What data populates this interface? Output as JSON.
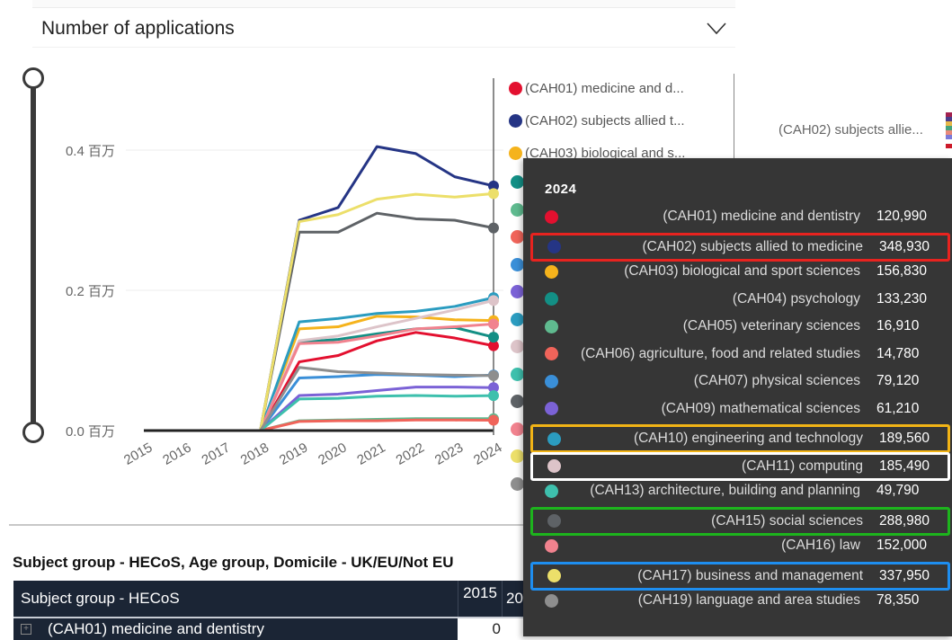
{
  "header": {
    "measure_selector": "Number of applications"
  },
  "side_panel": {
    "truncated_label": "(CAH02) subjects allie..."
  },
  "legend": {
    "items": [
      {
        "label": "(CAH01) medicine and d...",
        "color": "#e3102f"
      },
      {
        "label": "(CAH02) subjects allied t...",
        "color": "#253585"
      },
      {
        "label": "(CAH03) biological and s...",
        "color": "#f5b31c"
      }
    ]
  },
  "chart_data": {
    "type": "line",
    "title": "Number of applications",
    "x": [
      "2015",
      "2016",
      "2017",
      "2018",
      "2019",
      "2020",
      "2021",
      "2022",
      "2023",
      "2024"
    ],
    "yticks": [
      "0.0 百万",
      "0.2 百万",
      "0.4 百万"
    ],
    "ylim": [
      0,
      0.5
    ],
    "yunit": "百万 (millions)",
    "grid": true,
    "legend_position": "right",
    "series": [
      {
        "name": "(CAH01) medicine and dentistry",
        "color": "#e3102f",
        "values": [
          0,
          0,
          0,
          0,
          0.098,
          0.107,
          0.128,
          0.14,
          0.132,
          0.12099
        ]
      },
      {
        "name": "(CAH02) subjects allied to medicine",
        "color": "#253585",
        "values": [
          0,
          0,
          0,
          0,
          0.3,
          0.318,
          0.405,
          0.395,
          0.362,
          0.34893
        ]
      },
      {
        "name": "(CAH03) biological and sport sciences",
        "color": "#f5b31c",
        "values": [
          0,
          0,
          0,
          0,
          0.145,
          0.148,
          0.163,
          0.162,
          0.158,
          0.15683
        ]
      },
      {
        "name": "(CAH04) psychology",
        "color": "#138f85",
        "values": [
          0,
          0,
          0,
          0,
          0.126,
          0.13,
          0.138,
          0.145,
          0.147,
          0.13323
        ]
      },
      {
        "name": "(CAH05) veterinary sciences",
        "color": "#5fba8f",
        "values": [
          0,
          0,
          0,
          0,
          0.014,
          0.015,
          0.016,
          0.017,
          0.017,
          0.01691
        ]
      },
      {
        "name": "(CAH06) agriculture, food and related studies",
        "color": "#f0645a",
        "values": [
          0,
          0,
          0,
          0,
          0.013,
          0.014,
          0.014,
          0.015,
          0.015,
          0.01478
        ]
      },
      {
        "name": "(CAH07) physical sciences",
        "color": "#3a8fd8",
        "values": [
          0,
          0,
          0,
          0,
          0.075,
          0.077,
          0.08,
          0.079,
          0.077,
          0.07912
        ]
      },
      {
        "name": "(CAH09) mathematical sciences",
        "color": "#7b62d6",
        "values": [
          0,
          0,
          0,
          0,
          0.05,
          0.052,
          0.057,
          0.062,
          0.062,
          0.06121
        ]
      },
      {
        "name": "(CAH10) engineering and technology",
        "color": "#2b9cc0",
        "values": [
          0,
          0,
          0,
          0,
          0.155,
          0.16,
          0.167,
          0.17,
          0.177,
          0.18956
        ]
      },
      {
        "name": "(CAH11) computing",
        "color": "#ddc4c9",
        "values": [
          0,
          0,
          0,
          0,
          0.128,
          0.135,
          0.148,
          0.16,
          0.172,
          0.18549
        ]
      },
      {
        "name": "(CAH13) architecture, building and planning",
        "color": "#3ec0ad",
        "values": [
          0,
          0,
          0,
          0,
          0.045,
          0.046,
          0.049,
          0.05,
          0.049,
          0.04979
        ]
      },
      {
        "name": "(CAH15) social sciences",
        "color": "#5e6266",
        "values": [
          0,
          0,
          0,
          0,
          0.283,
          0.283,
          0.31,
          0.302,
          0.3,
          0.28898
        ]
      },
      {
        "name": "(CAH16) law",
        "color": "#f1828e",
        "values": [
          0,
          0,
          0,
          0,
          0.124,
          0.126,
          0.135,
          0.145,
          0.148,
          0.152
        ]
      },
      {
        "name": "(CAH17) business and management",
        "color": "#ecdf6a",
        "values": [
          0,
          0,
          0,
          0,
          0.298,
          0.308,
          0.33,
          0.337,
          0.333,
          0.33795
        ]
      },
      {
        "name": "(CAH19) language and area studies",
        "color": "#8e8e8e",
        "values": [
          0,
          0,
          0,
          0,
          0.09,
          0.084,
          0.082,
          0.08,
          0.079,
          0.07835
        ]
      }
    ]
  },
  "tooltip": {
    "title": "2024",
    "rows": [
      {
        "label": "(CAH01) medicine and dentistry",
        "value": "120,990",
        "color": "#e3102f",
        "highlight": ""
      },
      {
        "label": "(CAH02) subjects allied to medicine",
        "value": "348,930",
        "color": "#253585",
        "highlight": "red"
      },
      {
        "label": "(CAH03) biological and sport sciences",
        "value": "156,830",
        "color": "#f5b31c",
        "highlight": ""
      },
      {
        "label": "(CAH04) psychology",
        "value": "133,230",
        "color": "#138f85",
        "highlight": ""
      },
      {
        "label": "(CAH05) veterinary sciences",
        "value": "16,910",
        "color": "#5fba8f",
        "highlight": ""
      },
      {
        "label": "(CAH06) agriculture, food and related studies",
        "value": "14,780",
        "color": "#f0645a",
        "highlight": ""
      },
      {
        "label": "(CAH07) physical sciences",
        "value": "79,120",
        "color": "#3a8fd8",
        "highlight": ""
      },
      {
        "label": "(CAH09) mathematical sciences",
        "value": "61,210",
        "color": "#7b62d6",
        "highlight": ""
      },
      {
        "label": "(CAH10) engineering and technology",
        "value": "189,560",
        "color": "#2b9cc0",
        "highlight": "orange"
      },
      {
        "label": "(CAH11) computing",
        "value": "185,490",
        "color": "#ddc4c9",
        "highlight": "white"
      },
      {
        "label": "(CAH13) architecture, building and planning",
        "value": "49,790",
        "color": "#3ec0ad",
        "highlight": ""
      },
      {
        "label": "(CAH15) social sciences",
        "value": "288,980",
        "color": "#5e6266",
        "highlight": "green"
      },
      {
        "label": "(CAH16) law",
        "value": "152,000",
        "color": "#f1828e",
        "highlight": ""
      },
      {
        "label": "(CAH17) business and management",
        "value": "337,950",
        "color": "#ecdf6a",
        "highlight": "blue"
      },
      {
        "label": "(CAH19) language and area studies",
        "value": "78,350",
        "color": "#8e8e8e",
        "highlight": ""
      }
    ]
  },
  "table": {
    "title": "Subject group - HECoS, Age group, Domicile - UK/EU/Not EU",
    "columns": [
      "Subject group - HECoS",
      "2015",
      "20"
    ],
    "rows": [
      {
        "label": "(CAH01) medicine and dentistry",
        "values": [
          "0"
        ]
      }
    ]
  }
}
